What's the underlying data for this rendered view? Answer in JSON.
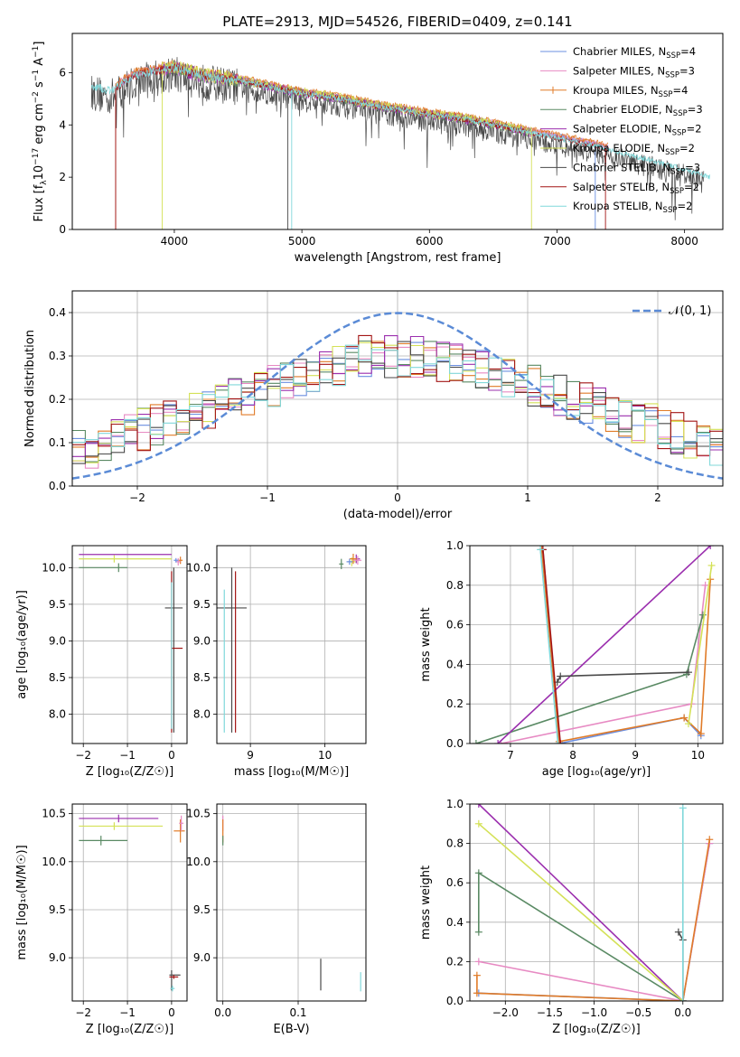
{
  "title": "PLATE=2913, MJD=54526, FIBERID=0409, z=0.141",
  "palette": {
    "Chabrier MILES": "#6b8fe0",
    "Salpeter MILES": "#e78ac3",
    "Kroupa MILES": "#e07b28",
    "Chabrier ELODIE": "#5a8a64",
    "Salpeter ELODIE": "#9b2fae",
    "Kroupa ELODIE": "#d4e157",
    "Chabrier STELIB": "#4a4a4a",
    "Salpeter STELIB": "#a31515",
    "Kroupa STELIB": "#80d8da",
    "gaussian": "#5b8bd6"
  },
  "chart_data": [
    {
      "id": "spectrum",
      "type": "line",
      "xlabel": "wavelength [Angstrom, rest frame]",
      "ylabel_pre": "Flux [f",
      "ylabel_sub": "λ",
      "ylabel_mid": "10",
      "ylabel_sup1": "−17",
      "ylabel_post": " erg cm",
      "ylabel_sup2": "−2",
      "ylabel_post2": " s",
      "ylabel_sup3": "−1",
      "ylabel_post3": " A",
      "ylabel_sup4": "−1",
      "ylabel_end": "]",
      "xlim": [
        3200,
        8300
      ],
      "ylim": [
        0,
        7.5
      ],
      "xticks": [
        4000,
        5000,
        6000,
        7000,
        8000
      ],
      "yticks": [
        0,
        2,
        4,
        6
      ],
      "continuum": {
        "x": [
          3350,
          3500,
          3700,
          3900,
          4000,
          4200,
          4500,
          4800,
          5000,
          5300,
          5600,
          6000,
          6300,
          6600,
          7000,
          7300,
          7600,
          8000,
          8200
        ],
        "y": [
          5.5,
          5.3,
          5.9,
          6.1,
          6.2,
          5.9,
          5.7,
          5.4,
          5.2,
          5.0,
          4.7,
          4.4,
          4.2,
          3.9,
          3.5,
          3.2,
          2.8,
          2.3,
          2.0
        ]
      },
      "legend": [
        {
          "label": "Chabrier MILES, N",
          "sub": "SSP",
          "n": "=4"
        },
        {
          "label": "Salpeter MILES, N",
          "sub": "SSP",
          "n": "=3"
        },
        {
          "label": "Kroupa MILES, N",
          "sub": "SSP",
          "n": "=4"
        },
        {
          "label": "Chabrier ELODIE, N",
          "sub": "SSP",
          "n": "=3"
        },
        {
          "label": "Salpeter ELODIE, N",
          "sub": "SSP",
          "n": "=2"
        },
        {
          "label": "Kroupa ELODIE, N",
          "sub": "SSP",
          "n": "=2"
        },
        {
          "label": "Chabrier STELIB, N",
          "sub": "SSP",
          "n": "=3"
        },
        {
          "label": "Salpeter STELIB, N",
          "sub": "SSP",
          "n": "=2"
        },
        {
          "label": "Kroupa STELIB, N",
          "sub": "SSP",
          "n": "=2"
        }
      ]
    },
    {
      "id": "residuals",
      "type": "step",
      "xlabel": "(data-model)/error",
      "ylabel": "Normed distribution",
      "xlim": [
        -2.5,
        2.5
      ],
      "ylim": [
        0,
        0.45
      ],
      "xticks": [
        -2,
        -1,
        0,
        1,
        2
      ],
      "yticks": [
        0.0,
        0.1,
        0.2,
        0.3,
        0.4
      ],
      "legend": "𝒩(0, 1)",
      "bin_width": 0.1,
      "base_shape": [
        0.08,
        0.09,
        0.1,
        0.11,
        0.12,
        0.13,
        0.14,
        0.15,
        0.16,
        0.17,
        0.18,
        0.19,
        0.2,
        0.21,
        0.22,
        0.23,
        0.24,
        0.25,
        0.26,
        0.27,
        0.28,
        0.29,
        0.3,
        0.3,
        0.3,
        0.3,
        0.3,
        0.3,
        0.29,
        0.28,
        0.28,
        0.27,
        0.26,
        0.25,
        0.24,
        0.23,
        0.22,
        0.21,
        0.2,
        0.19,
        0.18,
        0.17,
        0.16,
        0.15,
        0.14,
        0.13,
        0.12,
        0.11,
        0.1,
        0.09
      ]
    },
    {
      "id": "age_vs_Z",
      "type": "errorbar",
      "xlabel": "Z [log₁₀(Z/Z☉)]",
      "ylabel": "age  [log₁₀(age/yr)]",
      "xlim": [
        -2.25,
        0.35
      ],
      "ylim": [
        7.6,
        10.3
      ],
      "xticks": [
        -2,
        -1,
        0
      ],
      "yticks": [
        8.0,
        8.5,
        9.0,
        9.5,
        10.0
      ],
      "points": [
        {
          "s": "Salpeter ELODIE",
          "x": -0.9,
          "y": 10.18,
          "xe": [
            1.2,
            0.9
          ],
          "ye": [
            0,
            0
          ]
        },
        {
          "s": "Kroupa ELODIE",
          "x": -1.3,
          "y": 10.12,
          "xe": [
            0.8,
            1.3
          ],
          "ye": [
            0.05,
            0.05
          ]
        },
        {
          "s": "Chabrier ELODIE",
          "x": -1.2,
          "y": 10.0,
          "xe": [
            0.9,
            0.2
          ],
          "ye": [
            0.06,
            0.06
          ]
        },
        {
          "s": "Chabrier STELIB",
          "x": 0.05,
          "y": 9.45,
          "xe": [
            0.2,
            0.2
          ],
          "ye": [
            1.7,
            0.55
          ]
        },
        {
          "s": "Salpeter STELIB",
          "x": 0.0,
          "y": 8.9,
          "xe": [
            0,
            0.25
          ],
          "ye": [
            1.15,
            1.05
          ]
        },
        {
          "s": "Kroupa STELIB",
          "x": 0.0,
          "y": 8.9,
          "xe": [
            0,
            0
          ],
          "ye": [
            1.1,
            0.9
          ]
        },
        {
          "s": "Kroupa MILES",
          "x": 0.2,
          "y": 10.1,
          "xe": [
            0.05,
            0.05
          ],
          "ye": [
            0.05,
            0.05
          ]
        },
        {
          "s": "Salpeter MILES",
          "x": 0.15,
          "y": 10.08,
          "xe": [
            0.05,
            0.05
          ],
          "ye": [
            0.05,
            0.05
          ]
        },
        {
          "s": "Chabrier MILES",
          "x": 0.1,
          "y": 10.1,
          "xe": [
            0.05,
            0.05
          ],
          "ye": [
            0.03,
            0.03
          ]
        }
      ]
    },
    {
      "id": "age_vs_mass",
      "type": "errorbar",
      "xlabel": "mass [log₁₀(M/M☉)]",
      "xlim": [
        8.55,
        10.55
      ],
      "ylim": [
        7.6,
        10.3
      ],
      "xticks": [
        9,
        10
      ],
      "yticks": [
        8.0,
        8.5,
        9.0,
        9.5,
        10.0
      ],
      "points": [
        {
          "s": "Chabrier STELIB",
          "x": 8.75,
          "y": 9.45,
          "xe": [
            0.2,
            0.2
          ],
          "ye": [
            1.7,
            0.55
          ]
        },
        {
          "s": "Salpeter STELIB",
          "x": 8.8,
          "y": 8.9,
          "xe": [
            0,
            0
          ],
          "ye": [
            1.15,
            1.05
          ]
        },
        {
          "s": "Kroupa STELIB",
          "x": 8.65,
          "y": 8.7,
          "xe": [
            0,
            0
          ],
          "ye": [
            0.95,
            1.0
          ]
        },
        {
          "s": "Chabrier ELODIE",
          "x": 10.22,
          "y": 10.05,
          "xe": [
            0.03,
            0.03
          ],
          "ye": [
            0.07,
            0.07
          ]
        },
        {
          "s": "Salpeter ELODIE",
          "x": 10.42,
          "y": 10.12,
          "xe": [
            0.05,
            0.05
          ],
          "ye": [
            0.06,
            0.06
          ]
        },
        {
          "s": "Kroupa ELODIE",
          "x": 10.36,
          "y": 10.08,
          "xe": [
            0.05,
            0.05
          ],
          "ye": [
            0.06,
            0.06
          ]
        },
        {
          "s": "Kroupa MILES",
          "x": 10.38,
          "y": 10.12,
          "xe": [
            0.05,
            0.05
          ],
          "ye": [
            0.07,
            0.07
          ]
        },
        {
          "s": "Salpeter MILES",
          "x": 10.44,
          "y": 10.1,
          "xe": [
            0.05,
            0.05
          ],
          "ye": [
            0.06,
            0.06
          ]
        },
        {
          "s": "Chabrier MILES",
          "x": 10.33,
          "y": 10.08,
          "xe": [
            0.04,
            0.04
          ],
          "ye": [
            0.04,
            0.04
          ]
        }
      ]
    },
    {
      "id": "massweight_vs_age",
      "type": "line",
      "xlabel": "age  [log₁₀(age/yr)]",
      "ylabel": "mass weight",
      "xlim": [
        6.35,
        10.4
      ],
      "ylim": [
        0,
        1
      ],
      "xticks": [
        7,
        8,
        9,
        10
      ],
      "yticks": [
        0.0,
        0.2,
        0.4,
        0.6,
        0.8,
        1.0
      ],
      "series": [
        {
          "s": "Chabrier MILES",
          "x": [
            7.52,
            7.78,
            9.78,
            10.05
          ],
          "y": [
            0.98,
            0.0,
            0.13,
            0.04
          ]
        },
        {
          "s": "Salpeter MILES",
          "x": [
            6.85,
            9.9,
            10.12
          ],
          "y": [
            0.0,
            0.2,
            0.8
          ]
        },
        {
          "s": "Kroupa MILES",
          "x": [
            7.5,
            7.78,
            9.78,
            10.05,
            10.2
          ],
          "y": [
            0.98,
            0.01,
            0.13,
            0.05,
            0.83
          ]
        },
        {
          "s": "Chabrier ELODIE",
          "x": [
            6.45,
            9.82,
            10.08
          ],
          "y": [
            0.0,
            0.35,
            0.65
          ]
        },
        {
          "s": "Salpeter ELODIE",
          "x": [
            6.8,
            10.2
          ],
          "y": [
            0.0,
            1.0
          ]
        },
        {
          "s": "Kroupa ELODIE",
          "x": [
            9.85,
            10.22
          ],
          "y": [
            0.1,
            0.9
          ]
        },
        {
          "s": "Chabrier STELIB",
          "x": [
            7.75,
            7.8,
            9.85
          ],
          "y": [
            0.31,
            0.34,
            0.36
          ]
        },
        {
          "s": "Salpeter STELIB",
          "x": [
            7.52,
            7.8
          ],
          "y": [
            0.98,
            0.0
          ]
        },
        {
          "s": "Kroupa STELIB",
          "x": [
            7.48,
            7.76
          ],
          "y": [
            0.98,
            0.0
          ]
        }
      ]
    },
    {
      "id": "mass_vs_Z",
      "type": "errorbar",
      "xlabel": "Z [log₁₀(Z/Z☉)]",
      "ylabel": "mass [log₁₀(M/M☉)]",
      "xlim": [
        -2.25,
        0.35
      ],
      "ylim": [
        8.55,
        10.6
      ],
      "xticks": [
        -2,
        -1,
        0
      ],
      "yticks": [
        9.0,
        9.5,
        10.0,
        10.5
      ],
      "points": [
        {
          "s": "Salpeter ELODIE",
          "x": -1.2,
          "y": 10.45,
          "xe": [
            0.9,
            0.9
          ],
          "ye": [
            0.04,
            0.04
          ]
        },
        {
          "s": "Kroupa ELODIE",
          "x": -1.3,
          "y": 10.37,
          "xe": [
            0.8,
            1.1
          ],
          "ye": [
            0.04,
            0.04
          ]
        },
        {
          "s": "Chabrier ELODIE",
          "x": -1.6,
          "y": 10.22,
          "xe": [
            0.5,
            0.6
          ],
          "ye": [
            0.05,
            0.05
          ]
        },
        {
          "s": "Kroupa MILES",
          "x": 0.2,
          "y": 10.32,
          "xe": [
            0.15,
            0.1
          ],
          "ye": [
            0.12,
            0.12
          ]
        },
        {
          "s": "Salpeter MILES",
          "x": 0.22,
          "y": 10.4,
          "xe": [
            0.05,
            0.05
          ],
          "ye": [
            0.08,
            0.08
          ]
        },
        {
          "s": "Chabrier STELIB",
          "x": 0.0,
          "y": 8.82,
          "xe": [
            0.05,
            0.2
          ],
          "ye": [
            0.16,
            0.05
          ]
        },
        {
          "s": "Salpeter STELIB",
          "x": 0.05,
          "y": 8.8,
          "xe": [
            0.1,
            0.1
          ],
          "ye": [
            0.02,
            0.02
          ]
        },
        {
          "s": "Kroupa STELIB",
          "x": 0.02,
          "y": 8.68,
          "xe": [
            0.05,
            0.05
          ],
          "ye": [
            0.03,
            0.03
          ]
        }
      ]
    },
    {
      "id": "mass_vs_ebv",
      "type": "errorbar",
      "xlabel": "E(B-V)",
      "xlim": [
        -0.008,
        0.19
      ],
      "ylim": [
        8.55,
        10.6
      ],
      "xticks": [
        0.0,
        0.1
      ],
      "yticks": [
        9.0,
        9.5,
        10.0,
        10.5
      ],
      "points": [
        {
          "s": "Salpeter MILES",
          "x": 0.0,
          "y": 10.4,
          "xe": [
            0,
            0
          ],
          "ye": [
            0.08,
            0.08
          ]
        },
        {
          "s": "Kroupa MILES",
          "x": 0.0,
          "y": 10.32,
          "xe": [
            0,
            0
          ],
          "ye": [
            0.12,
            0.12
          ]
        },
        {
          "s": "Chabrier ELODIE",
          "x": 0.0,
          "y": 10.22,
          "xe": [
            0,
            0
          ],
          "ye": [
            0.05,
            0.05
          ]
        },
        {
          "s": "Chabrier STELIB",
          "x": 0.13,
          "y": 8.82,
          "xe": [
            0,
            0
          ],
          "ye": [
            0.16,
            0.17
          ]
        },
        {
          "s": "Kroupa STELIB",
          "x": 0.183,
          "y": 8.75,
          "xe": [
            0,
            0
          ],
          "ye": [
            0.1,
            0.1
          ]
        }
      ]
    },
    {
      "id": "massweight_vs_Z",
      "type": "line",
      "xlabel": "Z [log₁₀(Z/Z☉)]",
      "ylabel": "mass weight",
      "xlim": [
        -2.4,
        0.45
      ],
      "ylim": [
        0,
        1
      ],
      "xticks": [
        -2.0,
        -1.5,
        -1.0,
        -0.5,
        0.0
      ],
      "yticks": [
        0.0,
        0.2,
        0.4,
        0.6,
        0.8,
        1.0
      ],
      "series": [
        {
          "s": "Chabrier MILES",
          "x": [
            -2.3,
            0.0,
            0.3
          ],
          "y": [
            0.04,
            0.0,
            0.8
          ]
        },
        {
          "s": "Salpeter MILES",
          "x": [
            -2.3,
            0.0,
            0.3
          ],
          "y": [
            0.2,
            0.0,
            0.8
          ]
        },
        {
          "s": "Kroupa MILES",
          "x": [
            -2.32,
            -2.32,
            0.0,
            0.3
          ],
          "y": [
            0.13,
            0.04,
            0.0,
            0.82
          ]
        },
        {
          "s": "Chabrier ELODIE",
          "x": [
            -2.3,
            -2.3,
            0.0
          ],
          "y": [
            0.35,
            0.65,
            0.0
          ]
        },
        {
          "s": "Salpeter ELODIE",
          "x": [
            -2.3,
            0.0
          ],
          "y": [
            1.0,
            0.0
          ]
        },
        {
          "s": "Kroupa ELODIE",
          "x": [
            -2.3,
            0.0
          ],
          "y": [
            0.9,
            0.0
          ]
        },
        {
          "s": "Chabrier STELIB",
          "x": [
            -0.05,
            0.0,
            0.0
          ],
          "y": [
            0.35,
            0.31,
            0.0
          ]
        },
        {
          "s": "Kroupa STELIB",
          "x": [
            0.0,
            0.0
          ],
          "y": [
            0.98,
            0.0
          ]
        }
      ]
    }
  ]
}
